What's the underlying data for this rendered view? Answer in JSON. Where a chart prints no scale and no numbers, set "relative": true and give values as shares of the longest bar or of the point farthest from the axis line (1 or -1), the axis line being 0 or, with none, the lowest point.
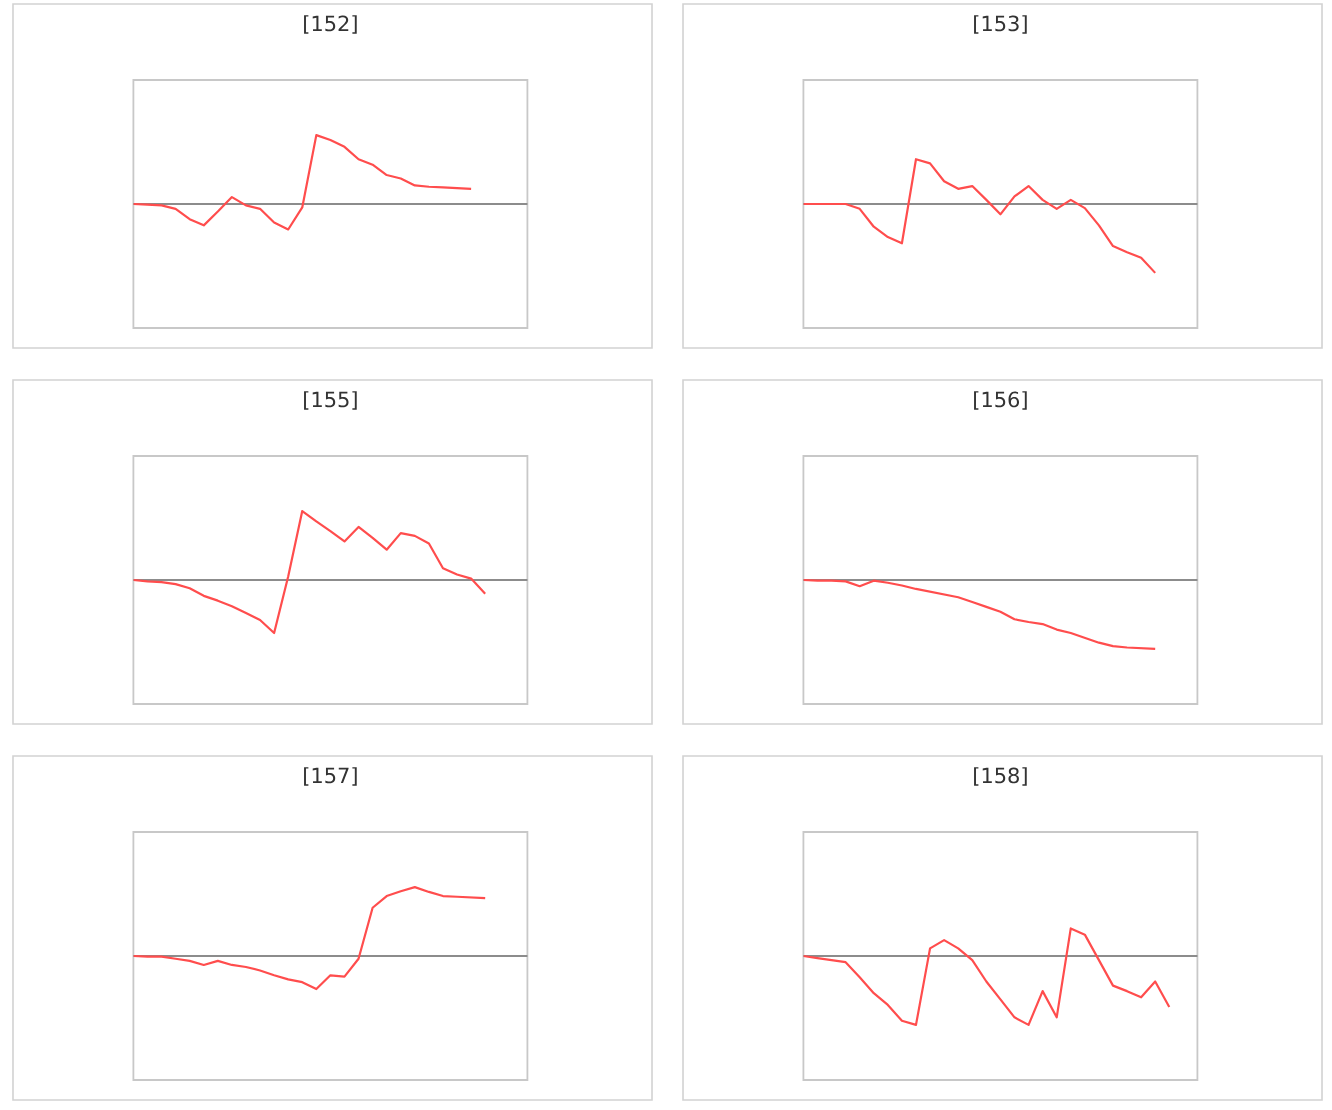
{
  "chart_data": [
    {
      "type": "line",
      "title": "[152]",
      "relative": true,
      "categories": [
        null,
        null,
        null,
        null,
        null,
        null,
        null,
        null,
        null,
        null,
        null,
        null,
        null,
        null,
        null,
        null,
        null,
        null,
        null,
        null,
        null,
        null,
        null,
        null,
        null,
        null,
        null,
        null,
        null
      ],
      "series": [
        {
          "color": "#ff4d4d",
          "values": [
            0,
            -0.01,
            -0.02,
            -0.07,
            -0.22,
            -0.31,
            -0.11,
            0.1,
            -0.02,
            -0.07,
            -0.27,
            -0.37,
            -0.05,
            1,
            0.93,
            0.83,
            0.65,
            0.57,
            0.42,
            0.37,
            0.27,
            0.25,
            0.24,
            0.23,
            0.22,
            null,
            null,
            null,
            null
          ]
        }
      ]
    },
    {
      "type": "line",
      "title": "[153]",
      "relative": true,
      "categories": [
        null,
        null,
        null,
        null,
        null,
        null,
        null,
        null,
        null,
        null,
        null,
        null,
        null,
        null,
        null,
        null,
        null,
        null,
        null,
        null,
        null,
        null,
        null,
        null,
        null,
        null,
        null,
        null,
        null
      ],
      "series": [
        {
          "color": "#ff4d4d",
          "values": [
            0,
            0,
            0,
            0,
            -0.07,
            -0.33,
            -0.48,
            -0.57,
            0.65,
            0.59,
            0.33,
            0.22,
            0.26,
            0.06,
            -0.15,
            0.11,
            0.26,
            0.06,
            -0.07,
            0.06,
            -0.06,
            -0.31,
            -0.61,
            -0.7,
            -0.78,
            -1,
            null,
            null,
            null
          ]
        }
      ]
    },
    {
      "type": "line",
      "title": "[155]",
      "relative": true,
      "categories": [
        null,
        null,
        null,
        null,
        null,
        null,
        null,
        null,
        null,
        null,
        null,
        null,
        null,
        null,
        null,
        null,
        null,
        null,
        null,
        null,
        null,
        null,
        null,
        null,
        null,
        null,
        null,
        null,
        null
      ],
      "series": [
        {
          "color": "#ff4d4d",
          "values": [
            0,
            -0.02,
            -0.03,
            -0.06,
            -0.12,
            -0.23,
            -0.3,
            -0.38,
            -0.48,
            -0.58,
            -0.77,
            0.05,
            1,
            0.85,
            0.71,
            0.56,
            0.77,
            0.61,
            0.44,
            0.68,
            0.64,
            0.53,
            0.17,
            0.08,
            0.02,
            -0.2,
            null,
            null,
            null
          ]
        }
      ]
    },
    {
      "type": "line",
      "title": "[156]",
      "relative": true,
      "categories": [
        null,
        null,
        null,
        null,
        null,
        null,
        null,
        null,
        null,
        null,
        null,
        null,
        null,
        null,
        null,
        null,
        null,
        null,
        null,
        null,
        null,
        null,
        null,
        null,
        null,
        null,
        null,
        null,
        null
      ],
      "series": [
        {
          "color": "#ff4d4d",
          "values": [
            0,
            -0.01,
            -0.01,
            -0.02,
            -0.09,
            -0.01,
            -0.04,
            -0.08,
            -0.13,
            -0.17,
            -0.21,
            -0.25,
            -0.32,
            -0.39,
            -0.46,
            -0.57,
            -0.61,
            -0.64,
            -0.72,
            -0.77,
            -0.84,
            -0.91,
            -0.96,
            -0.98,
            -0.99,
            -1,
            null,
            null,
            null
          ]
        }
      ]
    },
    {
      "type": "line",
      "title": "[157]",
      "relative": true,
      "categories": [
        null,
        null,
        null,
        null,
        null,
        null,
        null,
        null,
        null,
        null,
        null,
        null,
        null,
        null,
        null,
        null,
        null,
        null,
        null,
        null,
        null,
        null,
        null,
        null,
        null,
        null,
        null,
        null,
        null
      ],
      "series": [
        {
          "color": "#ff4d4d",
          "values": [
            0,
            -0.01,
            -0.01,
            -0.04,
            -0.07,
            -0.13,
            -0.07,
            -0.13,
            -0.16,
            -0.21,
            -0.28,
            -0.34,
            -0.38,
            -0.48,
            -0.28,
            -0.3,
            -0.04,
            0.7,
            0.87,
            0.94,
            1,
            0.93,
            0.87,
            0.86,
            0.85,
            0.84,
            null,
            null,
            null
          ]
        }
      ]
    },
    {
      "type": "line",
      "title": "[158]",
      "relative": true,
      "categories": [
        null,
        null,
        null,
        null,
        null,
        null,
        null,
        null,
        null,
        null,
        null,
        null,
        null,
        null,
        null,
        null,
        null,
        null,
        null,
        null,
        null,
        null,
        null,
        null,
        null,
        null,
        null,
        null,
        null
      ],
      "series": [
        {
          "color": "#ff4d4d",
          "values": [
            0,
            -0.03,
            -0.06,
            -0.09,
            -0.31,
            -0.54,
            -0.71,
            -0.94,
            -1,
            0.11,
            0.23,
            0.11,
            -0.06,
            -0.37,
            -0.63,
            -0.89,
            -1,
            -0.51,
            -0.89,
            0.4,
            0.31,
            -0.06,
            -0.43,
            -0.51,
            -0.6,
            -0.37,
            -0.74,
            null,
            null
          ]
        }
      ]
    }
  ]
}
